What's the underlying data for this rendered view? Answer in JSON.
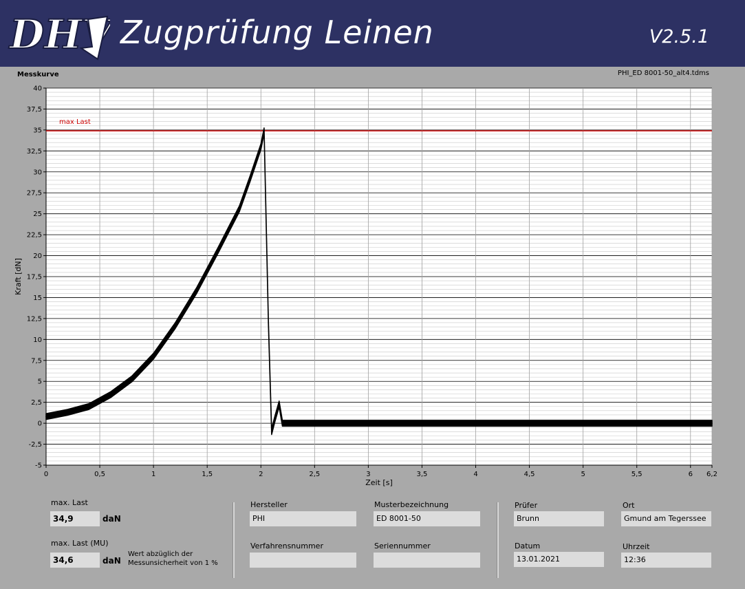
{
  "header": {
    "logo_text": "DHV",
    "title": "Zugprüfung Leinen",
    "version": "V2.5.1"
  },
  "chart": {
    "title": "Messkurve",
    "file_name": "PHI_ED 8001-50_alt4.tdms",
    "max_line_label": "max Last"
  },
  "chart_data": {
    "type": "line",
    "title": "Messkurve",
    "xlabel": "Zeit [s]",
    "ylabel": "Kraft [dN]",
    "xlim": [
      0,
      6.2
    ],
    "ylim": [
      -5,
      40
    ],
    "x_ticks": [
      "0",
      "0,5",
      "1",
      "1,5",
      "2",
      "2,5",
      "3",
      "3,5",
      "4",
      "4,5",
      "5",
      "5,5",
      "6",
      "6,2"
    ],
    "y_ticks": [
      "40",
      "37,5",
      "35",
      "32,5",
      "30",
      "27,5",
      "25",
      "22,5",
      "20",
      "17,5",
      "15",
      "12,5",
      "10",
      "7,5",
      "5",
      "2,5",
      "0",
      "-2,5",
      "-5"
    ],
    "grid": true,
    "reference_line": {
      "name": "max Last",
      "y": 34.9,
      "color": "#cc0000"
    },
    "series": [
      {
        "color": "#000000",
        "x": [
          0,
          0.2,
          0.4,
          0.6,
          0.8,
          1.0,
          1.2,
          1.4,
          1.6,
          1.8,
          1.9,
          2.0,
          2.03,
          2.07,
          2.1,
          2.13,
          2.17,
          2.2,
          2.3,
          2.5,
          3.0,
          4.0,
          5.0,
          6.0,
          6.2
        ],
        "y": [
          0.8,
          1.3,
          2.0,
          3.4,
          5.3,
          8.0,
          11.6,
          15.8,
          20.6,
          25.6,
          29.2,
          33.0,
          34.9,
          12.0,
          -1.0,
          0.5,
          2.3,
          0.0,
          0.0,
          0.0,
          0.0,
          0.0,
          0.0,
          0.0,
          0.0
        ],
        "noise_band": 0.7
      }
    ]
  },
  "fields": {
    "max_last_label": "max. Last",
    "max_last_value": "34,9",
    "max_last_unit": "daN",
    "max_last_mu_label": "max. Last (MU)",
    "max_last_mu_value": "34,6",
    "max_last_mu_unit": "daN",
    "mu_note_line1": "Wert abzüglich der",
    "mu_note_line2": "Messunsicherheit von 1 %",
    "hersteller_label": "Hersteller",
    "hersteller_value": "PHI",
    "musterbezeichnung_label": "Musterbezeichnung",
    "musterbezeichnung_value": "ED 8001-50",
    "verfahrensnummer_label": "Verfahrensnummer",
    "verfahrensnummer_value": "",
    "seriennummer_label": "Seriennummer",
    "seriennummer_value": "",
    "pruefer_label": "Prüfer",
    "pruefer_value": "Brunn",
    "ort_label": "Ort",
    "ort_value": "Gmund am Tegerssee",
    "datum_label": "Datum",
    "datum_value": "13.01.2021",
    "uhrzeit_label": "Uhrzeit",
    "uhrzeit_value": "12:36"
  }
}
